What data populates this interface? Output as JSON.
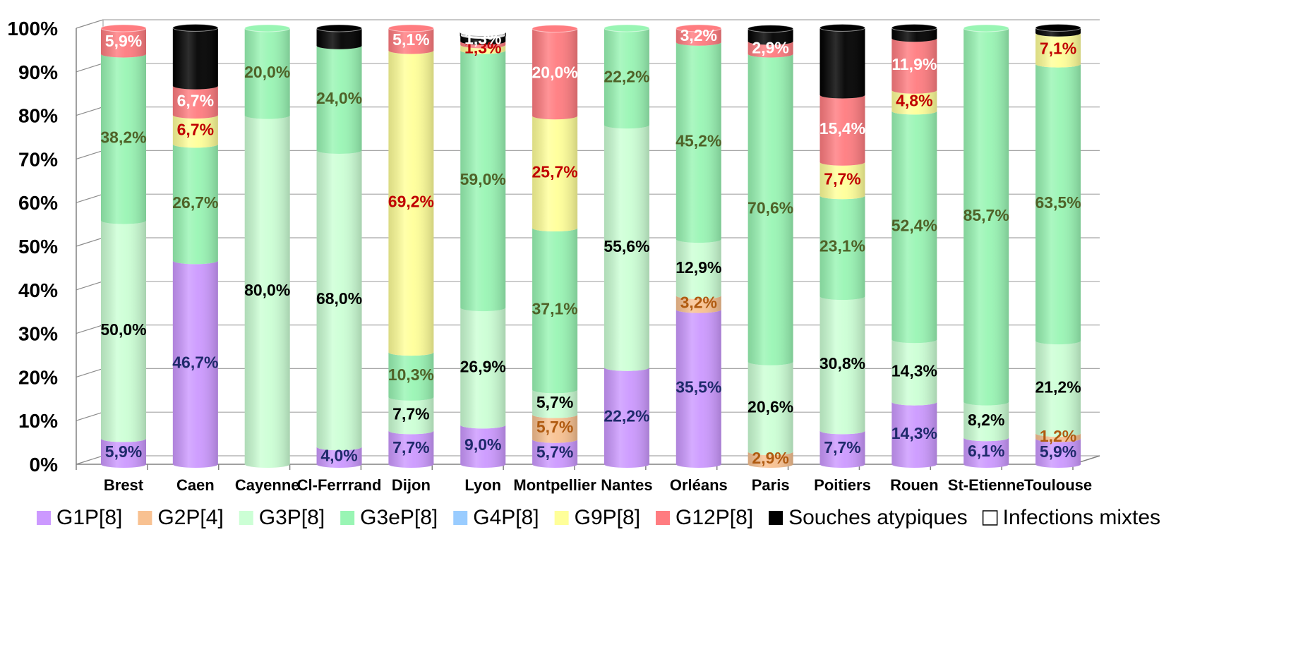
{
  "chart_data": {
    "type": "bar",
    "stacked": true,
    "percent": true,
    "categories": [
      "Brest",
      "Caen",
      "Cayenne",
      "Cl-Ferrrand",
      "Dijon",
      "Lyon",
      "Montpellier",
      "Nantes",
      "Orléans",
      "Paris",
      "Poitiers",
      "Rouen",
      "St-Etienne",
      "Toulouse"
    ],
    "y_ticks": [
      "0%",
      "10%",
      "20%",
      "30%",
      "40%",
      "50%",
      "60%",
      "70%",
      "80%",
      "90%",
      "100%"
    ],
    "ylim": [
      0,
      100
    ],
    "grid": true,
    "legend_position": "bottom",
    "series": [
      {
        "name": "G1P[8]",
        "color": "#cc99ff",
        "label_color": "#1f2a6b",
        "values": [
          5.9,
          46.7,
          0,
          4.0,
          7.7,
          9.0,
          5.7,
          22.2,
          35.5,
          0,
          7.7,
          14.3,
          6.1,
          5.9
        ],
        "labels": [
          "5,9%",
          "46,7%",
          "",
          "4,0%",
          "7,7%",
          "9,0%",
          "5,7%",
          "22,2%",
          "35,5%",
          "",
          "7,7%",
          "14,3%",
          "6,1%",
          "5,9%"
        ]
      },
      {
        "name": "G2P[4]",
        "color": "#f8c191",
        "label_color": "#b05a10",
        "values": [
          0,
          0,
          0,
          0,
          0,
          0,
          5.7,
          0,
          3.2,
          2.9,
          0,
          0,
          0,
          1.2
        ],
        "labels": [
          "",
          "",
          "",
          "",
          "",
          "",
          "5,7%",
          "",
          "3,2%",
          "2,9%",
          "",
          "",
          "",
          "1,2%"
        ]
      },
      {
        "name": "G3P[8]",
        "color": "#ccffd5",
        "label_color": "#000000",
        "values": [
          50.0,
          0,
          80.0,
          68.0,
          7.7,
          26.9,
          5.7,
          55.6,
          12.9,
          20.6,
          30.8,
          14.3,
          8.2,
          21.2
        ],
        "labels": [
          "50,0%",
          "",
          "80,0%",
          "68,0%",
          "7,7%",
          "26,9%",
          "5,7%",
          "55,6%",
          "12,9%",
          "20,6%",
          "30,8%",
          "14,3%",
          "8,2%",
          "21,2%"
        ]
      },
      {
        "name": "G3eP[8]",
        "color": "#99f5b4",
        "label_color": "#4f6228",
        "values": [
          38.2,
          26.7,
          20.0,
          24.0,
          10.3,
          59.0,
          37.1,
          22.2,
          45.2,
          70.6,
          23.1,
          52.4,
          85.7,
          63.5
        ],
        "labels": [
          "38,2%",
          "26,7%",
          "20,0%",
          "24,0%",
          "10,3%",
          "59,0%",
          "37,1%",
          "22,2%",
          "45,2%",
          "70,6%",
          "23,1%",
          "52,4%",
          "85,7%",
          "63,5%"
        ]
      },
      {
        "name": "G4P[8]",
        "color": "#99ccff",
        "label_color": "#000000",
        "values": [
          0,
          0,
          0,
          0,
          0,
          0,
          0,
          0,
          0,
          0,
          0,
          0,
          0,
          0
        ],
        "labels": [
          "",
          "",
          "",
          "",
          "",
          "",
          "",
          "",
          "",
          "",
          "",
          "",
          "",
          ""
        ]
      },
      {
        "name": "G9P[8]",
        "color": "#ffff99",
        "label_color": "#c00000",
        "values": [
          0,
          6.7,
          0,
          0,
          69.2,
          1.3,
          25.7,
          0,
          0,
          0,
          7.7,
          4.8,
          0,
          7.1
        ],
        "labels": [
          "",
          "6,7%",
          "",
          "",
          "69,2%",
          "1,3%",
          "25,7%",
          "",
          "",
          "",
          "7,7%",
          "4,8%",
          "",
          "7,1%"
        ]
      },
      {
        "name": "G12P[8]",
        "color": "#ff7c80",
        "label_color": "#ffffff",
        "values": [
          5.9,
          6.7,
          0,
          0,
          5.1,
          0.8,
          20.0,
          0,
          3.2,
          2.9,
          15.4,
          11.9,
          0,
          0
        ],
        "labels": [
          "5,9%",
          "6,7%",
          "",
          "",
          "5,1%",
          "",
          "20,0%",
          "",
          "3,2%",
          "2,9%",
          "15,4%",
          "11,9%",
          "",
          ""
        ]
      },
      {
        "name": "Souches atypiques",
        "color": "#000000",
        "label_color": "#ffffff",
        "values": [
          0,
          13.3,
          0,
          4.0,
          0,
          1.3,
          0,
          0,
          0,
          2.9,
          15.4,
          2.4,
          0,
          1.2
        ],
        "labels": [
          "",
          "",
          "",
          "",
          "",
          "1,3%",
          "",
          "",
          "",
          "",
          "",
          "",
          "",
          ""
        ]
      },
      {
        "name": "Infections mixtes",
        "color": "#ffffff",
        "label_color": "#000000",
        "values": [
          0,
          0,
          0,
          0,
          0,
          0.7,
          0,
          0,
          0,
          0,
          0,
          0,
          0,
          0
        ],
        "labels": [
          "",
          "",
          "",
          "",
          "",
          "",
          "",
          "",
          "",
          "",
          "",
          "",
          "",
          ""
        ]
      }
    ]
  }
}
